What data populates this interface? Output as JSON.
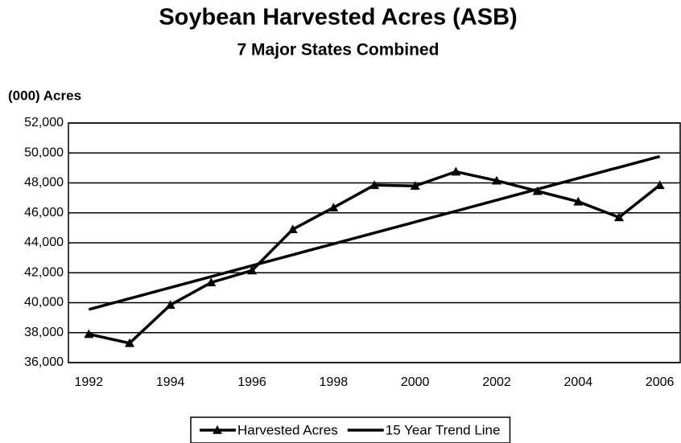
{
  "chart_data": {
    "type": "line",
    "title": "Soybean Harvested Acres (ASB)",
    "subtitle": "7 Major States Combined",
    "y_label": "(000) Acres",
    "categories": [
      "1992",
      null,
      "1994",
      null,
      "1996",
      null,
      "1998",
      null,
      "2000",
      null,
      "2002",
      null,
      "2004",
      null,
      "2006"
    ],
    "series": [
      {
        "name": "Harvested Acres",
        "color": "#000000",
        "marker": "triangle",
        "values": [
          37900,
          37300,
          39850,
          41350,
          42150,
          44900,
          46350,
          47850,
          47800,
          48750,
          48150,
          47450,
          46750,
          45700,
          47850
        ]
      },
      {
        "name": "15 Year Trend Line",
        "color": "#000000",
        "marker": "none",
        "values": [
          39550,
          40280,
          41010,
          41740,
          42470,
          43200,
          43930,
          44660,
          45390,
          46120,
          46850,
          47580,
          48310,
          49040,
          49770
        ]
      }
    ],
    "ylim": [
      36000,
      52000
    ],
    "yticks": [
      {
        "value": 36000,
        "label": "36,000"
      },
      {
        "value": 38000,
        "label": "38,000"
      },
      {
        "value": 40000,
        "label": "40,000"
      },
      {
        "value": 42000,
        "label": "42,000"
      },
      {
        "value": 44000,
        "label": "44,000"
      },
      {
        "value": 46000,
        "label": "46,000"
      },
      {
        "value": 48000,
        "label": "48,000"
      },
      {
        "value": 50000,
        "label": "50,000"
      },
      {
        "value": 52000,
        "label": "52,000"
      }
    ],
    "grid": true,
    "legend": "bottom"
  }
}
